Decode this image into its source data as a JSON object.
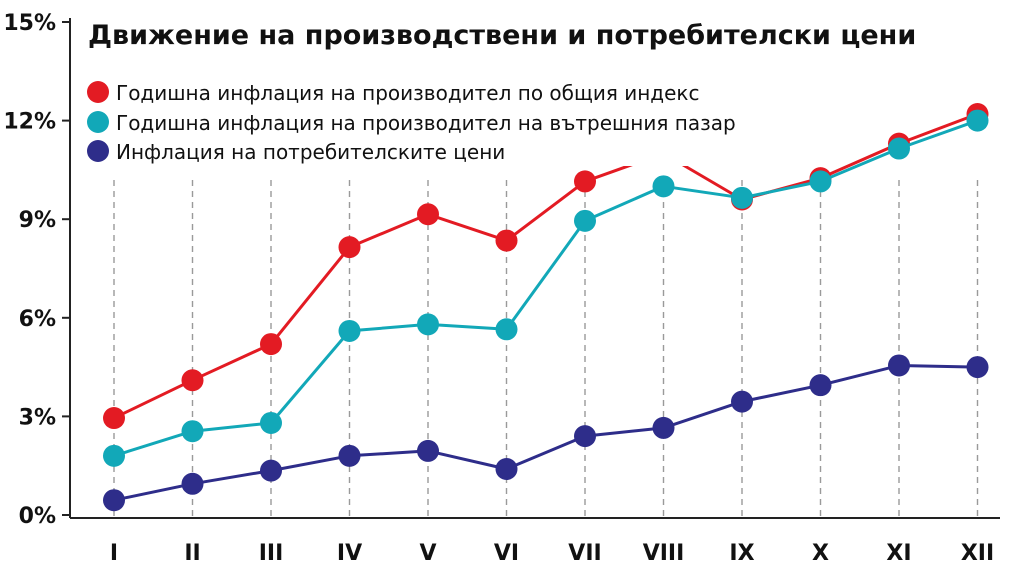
{
  "chart_data": {
    "type": "line",
    "title": "Движение на производствени и потребителски цени",
    "categories": [
      "I",
      "II",
      "III",
      "IV",
      "V",
      "VI",
      "VII",
      "VIII",
      "IX",
      "X",
      "XI",
      "XII"
    ],
    "yticks": [
      "0%",
      "3%",
      "6%",
      "9%",
      "12%",
      "15%"
    ],
    "ylim": [
      0,
      15
    ],
    "grid": "vertical dashed",
    "legend_position": "top-left",
    "series": [
      {
        "name": "Годишна инфлация на производител по общия индекс",
        "color": "#e31b23",
        "values": [
          2.95,
          4.1,
          5.2,
          8.15,
          9.15,
          8.35,
          10.15,
          11.0,
          9.6,
          10.25,
          11.3,
          12.2
        ]
      },
      {
        "name": "Годишна инфлация на производител на вътрешния пазар",
        "color": "#12a8b8",
        "values": [
          1.8,
          2.55,
          2.8,
          5.6,
          5.8,
          5.65,
          8.95,
          10.0,
          9.65,
          10.15,
          11.15,
          12.0
        ]
      },
      {
        "name": "Инфлация на потребителските цени",
        "color": "#2e2d8a",
        "values": [
          0.45,
          0.95,
          1.35,
          1.8,
          1.95,
          1.4,
          2.4,
          2.65,
          3.45,
          3.95,
          4.55,
          4.5
        ]
      }
    ]
  }
}
